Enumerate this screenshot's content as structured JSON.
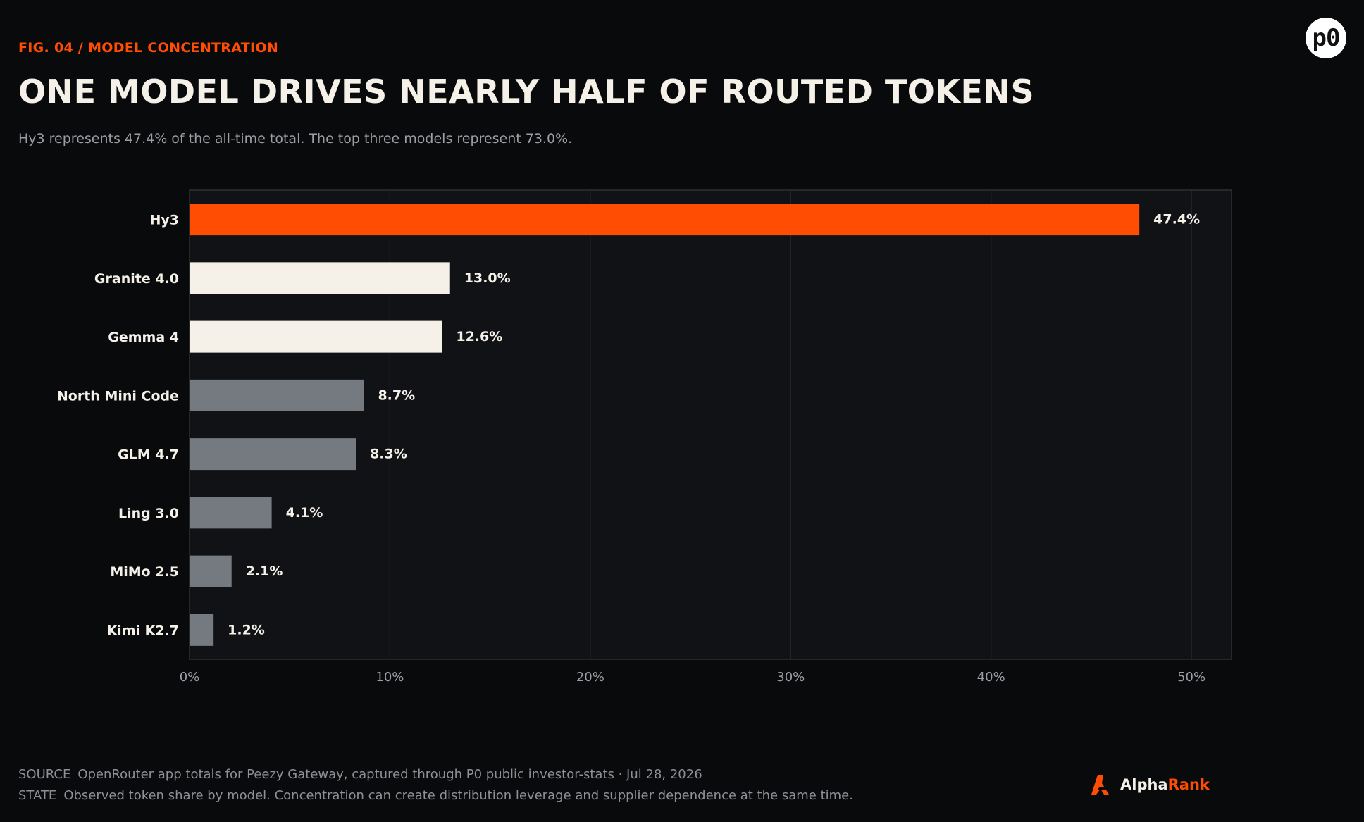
{
  "header": {
    "eyebrow": "FIG. 04 / MODEL CONCENTRATION",
    "title": "ONE MODEL DRIVES NEARLY HALF OF ROUTED TOKENS",
    "subtitle": "Hy3 represents 47.4% of the all-time total. The top three models represent 73.0%."
  },
  "logo": {
    "text": "p0"
  },
  "chart_data": {
    "type": "bar",
    "orientation": "horizontal",
    "categories": [
      "Hy3",
      "Granite 4.0",
      "Gemma 4",
      "North Mini Code",
      "GLM 4.7",
      "Ling 3.0",
      "MiMo 2.5",
      "Kimi K2.7"
    ],
    "values": [
      47.4,
      13.0,
      12.6,
      8.7,
      8.3,
      4.1,
      2.1,
      1.2
    ],
    "value_labels": [
      "47.4%",
      "13.0%",
      "12.6%",
      "8.7%",
      "8.3%",
      "4.1%",
      "2.1%",
      "1.2%"
    ],
    "bar_colors": [
      "#ff4d04",
      "#f5f1e8",
      "#f5f1e8",
      "#757980",
      "#757980",
      "#757980",
      "#757980",
      "#757980"
    ],
    "xlim": [
      0,
      52
    ],
    "xticks": [
      0,
      10,
      20,
      30,
      40,
      50
    ],
    "xtick_labels": [
      "0%",
      "10%",
      "20%",
      "30%",
      "40%",
      "50%"
    ],
    "grid": true
  },
  "footer": {
    "source_label": "SOURCE",
    "source_text": "OpenRouter app totals for Peezy Gateway, captured through P0 public investor-stats · Jul 28, 2026",
    "state_label": "STATE",
    "state_text": "Observed token share by model. Concentration can create distribution leverage and supplier dependence at the same time."
  },
  "brand": {
    "part1": "Alpha",
    "part2": "Rank",
    "accent": "#ff4d04"
  }
}
